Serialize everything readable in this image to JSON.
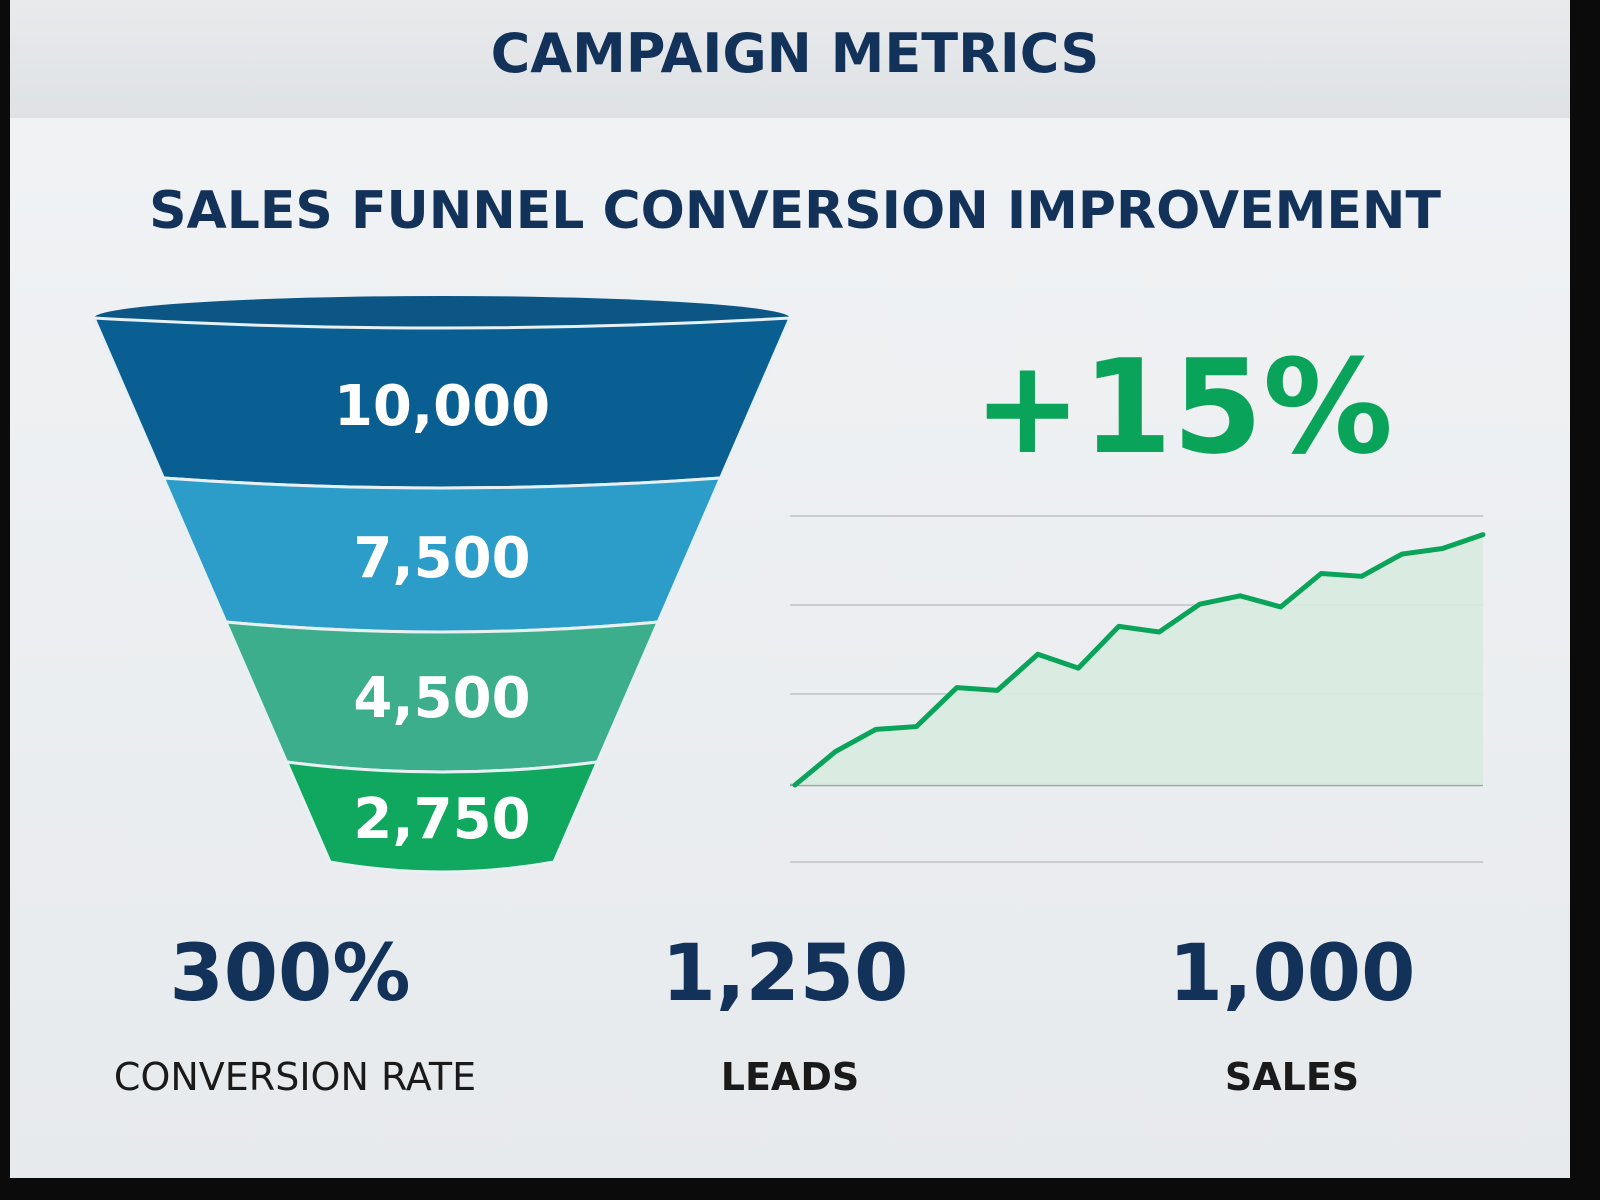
{
  "header": {
    "title": "CAMPAIGN METRICS"
  },
  "subtitle": "SALES FUNNEL CONVERSION IMPROVEMENT",
  "growth_label": "+15%",
  "colors": {
    "navy": "#13325a",
    "green": "#0aa35a",
    "funnel_1": "#0a5f92",
    "funnel_2": "#2c9cc9",
    "funnel_3": "#3cae8b",
    "funnel_4": "#0fa85e",
    "area_fill": "#d8ebdf"
  },
  "chart_data": [
    {
      "type": "funnel",
      "categories": [
        "",
        "",
        "",
        ""
      ],
      "values": [
        10000,
        7500,
        4500,
        2750
      ],
      "labels": [
        "10,000",
        "7,500",
        "4,500",
        "2,750"
      ]
    },
    {
      "type": "area",
      "title": "",
      "xlabel": "",
      "ylabel": "",
      "x": [
        0,
        1,
        2,
        3,
        4,
        5,
        6,
        7,
        8,
        9,
        10,
        11,
        12,
        13,
        14,
        15,
        16,
        17
      ],
      "y": [
        0.0,
        0.6,
        1.0,
        1.05,
        1.75,
        1.7,
        2.35,
        2.1,
        2.85,
        2.75,
        3.25,
        3.4,
        3.2,
        3.8,
        3.75,
        4.15,
        4.25,
        4.5
      ],
      "ylim": [
        0,
        5
      ],
      "grid": true,
      "legend": "none"
    }
  ],
  "kpis": [
    {
      "value": "300%",
      "label": "CONVERSION RATE"
    },
    {
      "value": "1,250",
      "label": "LEADS"
    },
    {
      "value": "1,000",
      "label": "SALES"
    }
  ]
}
